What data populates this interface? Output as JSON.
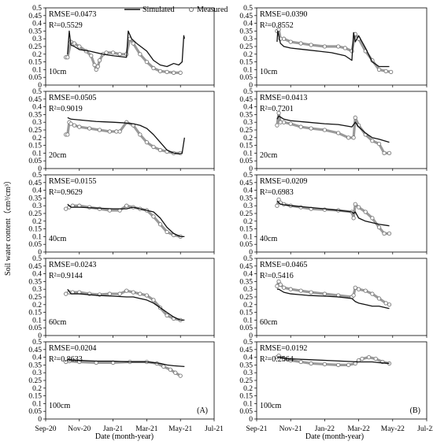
{
  "figure": {
    "ylabel": "Soil water content（cm³/cm³）",
    "xlabel_a": "Date (month-year)",
    "xlabel_b": "Date (month-year)",
    "legend": {
      "simulated": "Simulated",
      "measured": "Measured"
    },
    "colors": {
      "simulated": "#111111",
      "measured": "#9a9a9a",
      "measured_fill": "#7a7a7a",
      "axis": "#000000"
    }
  },
  "chart_data": [
    {
      "type": "line",
      "panel": "A",
      "depth": "10cm",
      "rmse": "RMSE=0.0473",
      "r2": "R²=0.5529",
      "ylim": [
        0,
        0.5
      ],
      "yticks": [
        "0",
        "0.05",
        "0.1",
        "0.15",
        "0.2",
        "0.25",
        "0.3",
        "0.35",
        "0.4",
        "0.45",
        "0.5"
      ],
      "xticks": [
        "Sep-20",
        "Nov-20",
        "Jan-21",
        "Mar-21",
        "May-21",
        "Jul-21"
      ],
      "series": [
        {
          "name": "Simulated",
          "x": [
            0.65,
            0.7,
            0.75,
            0.85,
            1.0,
            1.3,
            1.7,
            2.0,
            2.4,
            2.45,
            2.55,
            2.7,
            3.0,
            3.2,
            3.4,
            3.6,
            3.8,
            3.95,
            4.05,
            4.1,
            4.12
          ],
          "y": [
            0.2,
            0.35,
            0.26,
            0.25,
            0.23,
            0.22,
            0.2,
            0.19,
            0.18,
            0.35,
            0.3,
            0.27,
            0.22,
            0.16,
            0.13,
            0.12,
            0.14,
            0.13,
            0.15,
            0.32,
            0.3
          ]
        },
        {
          "name": "Measured",
          "x": [
            0.6,
            0.65,
            0.75,
            0.85,
            1.0,
            1.2,
            1.35,
            1.45,
            1.5,
            1.55,
            1.6,
            1.7,
            1.8,
            2.0,
            2.2,
            2.4,
            2.5,
            2.6,
            2.8,
            3.0,
            3.2,
            3.4,
            3.6,
            3.8,
            4.0
          ],
          "y": [
            0.18,
            0.18,
            0.28,
            0.27,
            0.25,
            0.22,
            0.19,
            0.13,
            0.1,
            0.12,
            0.16,
            0.2,
            0.21,
            0.21,
            0.2,
            0.2,
            0.3,
            0.27,
            0.2,
            0.15,
            0.11,
            0.09,
            0.085,
            0.08,
            0.08
          ]
        }
      ]
    },
    {
      "type": "line",
      "panel": "A",
      "depth": "20cm",
      "rmse": "RMSE=0.0505",
      "r2": "R²=0.9019",
      "ylim": [
        0,
        0.5
      ],
      "yticks": [
        "0",
        "0.05",
        "0.1",
        "0.15",
        "0.2",
        "0.25",
        "0.3",
        "0.35",
        "0.4",
        "0.45",
        "0.5"
      ],
      "xticks": [
        "Sep-20",
        "Nov-20",
        "Jan-21",
        "Mar-21",
        "May-21",
        "Jul-21"
      ],
      "series": [
        {
          "name": "Simulated",
          "x": [
            0.65,
            0.75,
            1.0,
            1.5,
            2.0,
            2.4,
            2.6,
            2.8,
            3.0,
            3.2,
            3.4,
            3.6,
            3.8,
            3.95,
            4.05,
            4.12
          ],
          "y": [
            0.33,
            0.32,
            0.315,
            0.305,
            0.3,
            0.295,
            0.29,
            0.28,
            0.26,
            0.22,
            0.17,
            0.12,
            0.1,
            0.095,
            0.1,
            0.2
          ]
        },
        {
          "name": "Measured",
          "x": [
            0.6,
            0.65,
            0.7,
            0.75,
            0.85,
            1.0,
            1.3,
            1.6,
            1.9,
            2.1,
            2.2,
            2.4,
            2.6,
            2.8,
            3.0,
            3.2,
            3.4,
            3.6,
            3.8,
            4.0
          ],
          "y": [
            0.22,
            0.22,
            0.3,
            0.29,
            0.28,
            0.27,
            0.26,
            0.25,
            0.24,
            0.24,
            0.24,
            0.3,
            0.28,
            0.22,
            0.17,
            0.14,
            0.12,
            0.11,
            0.1,
            0.1
          ]
        }
      ]
    },
    {
      "type": "line",
      "panel": "A",
      "depth": "40cm",
      "rmse": "RMSE=0.0155",
      "r2": "R²=0.9629",
      "ylim": [
        0,
        0.5
      ],
      "yticks": [
        "0",
        "0.05",
        "0.1",
        "0.15",
        "0.2",
        "0.25",
        "0.3",
        "0.35",
        "0.4",
        "0.45",
        "0.5"
      ],
      "xticks": [
        "Sep-20",
        "Nov-20",
        "Jan-21",
        "Mar-21",
        "May-21",
        "Jul-21"
      ],
      "series": [
        {
          "name": "Simulated",
          "x": [
            0.65,
            0.75,
            1.0,
            1.5,
            2.0,
            2.4,
            2.6,
            2.8,
            3.0,
            3.2,
            3.4,
            3.6,
            3.8,
            4.0,
            4.12
          ],
          "y": [
            0.31,
            0.29,
            0.29,
            0.285,
            0.28,
            0.28,
            0.29,
            0.28,
            0.27,
            0.26,
            0.22,
            0.16,
            0.12,
            0.1,
            0.1
          ]
        },
        {
          "name": "Measured",
          "x": [
            0.6,
            0.7,
            0.8,
            1.0,
            1.3,
            1.6,
            1.9,
            2.2,
            2.4,
            2.6,
            2.8,
            3.0,
            3.2,
            3.4,
            3.6,
            3.8,
            4.0
          ],
          "y": [
            0.28,
            0.29,
            0.3,
            0.3,
            0.29,
            0.28,
            0.27,
            0.27,
            0.3,
            0.29,
            0.28,
            0.27,
            0.23,
            0.18,
            0.13,
            0.11,
            0.1
          ]
        }
      ]
    },
    {
      "type": "line",
      "panel": "A",
      "depth": "60cm",
      "rmse": "RMSE=0.0243",
      "r2": "R²=0.9144",
      "ylim": [
        0,
        0.5
      ],
      "yticks": [
        "0",
        "0.05",
        "0.1",
        "0.15",
        "0.2",
        "0.25",
        "0.3",
        "0.35",
        "0.4",
        "0.45",
        "0.5"
      ],
      "xticks": [
        "Sep-20",
        "Nov-20",
        "Jan-21",
        "Mar-21",
        "May-21",
        "Jul-21"
      ],
      "series": [
        {
          "name": "Simulated",
          "x": [
            0.65,
            0.75,
            1.0,
            1.5,
            2.0,
            2.4,
            2.6,
            2.8,
            3.0,
            3.2,
            3.4,
            3.6,
            3.8,
            4.0,
            4.12
          ],
          "y": [
            0.3,
            0.27,
            0.27,
            0.26,
            0.255,
            0.25,
            0.25,
            0.24,
            0.23,
            0.21,
            0.18,
            0.15,
            0.12,
            0.1,
            0.1
          ]
        },
        {
          "name": "Measured",
          "x": [
            0.6,
            0.7,
            0.8,
            1.0,
            1.3,
            1.6,
            1.9,
            2.2,
            2.4,
            2.6,
            2.8,
            3.0,
            3.2,
            3.4,
            3.6,
            3.8,
            4.0
          ],
          "y": [
            0.27,
            0.28,
            0.28,
            0.28,
            0.27,
            0.265,
            0.27,
            0.27,
            0.29,
            0.28,
            0.27,
            0.26,
            0.23,
            0.18,
            0.13,
            0.11,
            0.1
          ]
        }
      ]
    },
    {
      "type": "line",
      "panel": "A",
      "depth": "100cm",
      "rmse": "RMSE=0.0204",
      "r2": "R²=0.8633",
      "ylim": [
        0,
        0.5
      ],
      "yticks": [
        "0",
        "0.05",
        "0.1",
        "0.15",
        "0.2",
        "0.25",
        "0.3",
        "0.35",
        "0.4",
        "0.45",
        "0.5"
      ],
      "xticks": [
        "Sep-20",
        "Nov-20",
        "Jan-21",
        "Mar-21",
        "May-21",
        "Jul-21"
      ],
      "series": [
        {
          "name": "Simulated",
          "x": [
            0.65,
            1.0,
            1.5,
            2.0,
            2.5,
            3.0,
            3.4,
            3.6,
            3.8,
            4.12
          ],
          "y": [
            0.385,
            0.38,
            0.375,
            0.375,
            0.37,
            0.37,
            0.36,
            0.35,
            0.345,
            0.34
          ]
        },
        {
          "name": "Measured",
          "x": [
            0.6,
            0.7,
            1.0,
            1.5,
            2.0,
            2.5,
            3.0,
            3.3,
            3.5,
            3.7,
            3.85,
            4.0
          ],
          "y": [
            0.37,
            0.375,
            0.37,
            0.365,
            0.365,
            0.37,
            0.37,
            0.36,
            0.34,
            0.32,
            0.3,
            0.28
          ]
        }
      ]
    },
    {
      "type": "line",
      "panel": "B",
      "depth": "10cm",
      "rmse": "RMSE=0.0390",
      "r2": "R²=0.8552",
      "ylim": [
        0,
        0.5
      ],
      "yticks": [
        "0",
        "0.05",
        "0.1",
        "0.15",
        "0.2",
        "0.25",
        "0.3",
        "0.35",
        "0.4",
        "0.45",
        "0.5"
      ],
      "xticks": [
        "Sep-21",
        "Nov-21",
        "Jan-22",
        "Mar-22",
        "May-22",
        "Jul-22"
      ],
      "series": [
        {
          "name": "Simulated",
          "x": [
            0.6,
            0.62,
            0.7,
            0.8,
            1.0,
            1.4,
            1.8,
            2.2,
            2.6,
            2.8,
            2.85,
            2.9,
            3.0,
            3.2,
            3.4,
            3.6,
            3.9
          ],
          "y": [
            0.28,
            0.35,
            0.27,
            0.25,
            0.24,
            0.23,
            0.22,
            0.21,
            0.19,
            0.16,
            0.34,
            0.28,
            0.32,
            0.24,
            0.15,
            0.12,
            0.12
          ]
        },
        {
          "name": "Measured",
          "x": [
            0.6,
            0.65,
            0.7,
            0.8,
            1.0,
            1.3,
            1.6,
            2.0,
            2.4,
            2.6,
            2.8,
            2.9,
            3.0,
            3.2,
            3.4,
            3.6,
            3.8,
            3.95
          ],
          "y": [
            0.35,
            0.36,
            0.3,
            0.3,
            0.28,
            0.27,
            0.26,
            0.25,
            0.25,
            0.24,
            0.22,
            0.33,
            0.3,
            0.22,
            0.16,
            0.1,
            0.09,
            0.085
          ]
        }
      ]
    },
    {
      "type": "line",
      "panel": "B",
      "depth": "20cm",
      "rmse": "RMSE=0.0413",
      "r2": "R²=0.7201",
      "ylim": [
        0,
        0.5
      ],
      "yticks": [
        "0",
        "0.05",
        "0.1",
        "0.15",
        "0.2",
        "0.25",
        "0.3",
        "0.35",
        "0.4",
        "0.45",
        "0.5"
      ],
      "xticks": [
        "Sep-21",
        "Nov-21",
        "Jan-22",
        "Mar-22",
        "May-22",
        "Jul-22"
      ],
      "series": [
        {
          "name": "Simulated",
          "x": [
            0.6,
            0.65,
            0.8,
            1.0,
            1.5,
            2.0,
            2.4,
            2.8,
            2.9,
            3.0,
            3.2,
            3.4,
            3.6,
            3.9
          ],
          "y": [
            0.32,
            0.34,
            0.32,
            0.31,
            0.3,
            0.29,
            0.285,
            0.27,
            0.3,
            0.27,
            0.23,
            0.2,
            0.19,
            0.17
          ]
        },
        {
          "name": "Measured",
          "x": [
            0.6,
            0.65,
            0.7,
            0.8,
            1.0,
            1.3,
            1.6,
            2.0,
            2.4,
            2.7,
            2.85,
            2.9,
            3.0,
            3.2,
            3.4,
            3.6,
            3.75,
            3.9
          ],
          "y": [
            0.28,
            0.36,
            0.3,
            0.3,
            0.29,
            0.27,
            0.26,
            0.25,
            0.23,
            0.2,
            0.2,
            0.33,
            0.28,
            0.22,
            0.18,
            0.16,
            0.1,
            0.1
          ]
        }
      ]
    },
    {
      "type": "line",
      "panel": "B",
      "depth": "40cm",
      "rmse": "RMSE=0.0209",
      "r2": "R²=0.6983",
      "ylim": [
        0,
        0.5
      ],
      "yticks": [
        "0",
        "0.05",
        "0.1",
        "0.15",
        "0.2",
        "0.25",
        "0.3",
        "0.35",
        "0.4",
        "0.45",
        "0.5"
      ],
      "xticks": [
        "Sep-21",
        "Nov-21",
        "Jan-22",
        "Mar-22",
        "May-22",
        "Jul-22"
      ],
      "series": [
        {
          "name": "Simulated",
          "x": [
            0.6,
            0.7,
            1.0,
            1.5,
            2.0,
            2.4,
            2.8,
            2.85,
            2.9,
            3.0,
            3.2,
            3.4,
            3.6,
            3.9
          ],
          "y": [
            0.33,
            0.31,
            0.3,
            0.29,
            0.28,
            0.27,
            0.26,
            0.25,
            0.26,
            0.22,
            0.2,
            0.19,
            0.18,
            0.17
          ]
        },
        {
          "name": "Measured",
          "x": [
            0.6,
            0.65,
            0.7,
            0.8,
            1.0,
            1.3,
            1.6,
            2.0,
            2.4,
            2.8,
            2.85,
            2.9,
            3.0,
            3.2,
            3.4,
            3.6,
            3.75,
            3.9
          ],
          "y": [
            0.3,
            0.34,
            0.32,
            0.31,
            0.3,
            0.29,
            0.28,
            0.275,
            0.27,
            0.26,
            0.22,
            0.31,
            0.29,
            0.26,
            0.22,
            0.16,
            0.12,
            0.12
          ]
        }
      ]
    },
    {
      "type": "line",
      "panel": "B",
      "depth": "60cm",
      "rmse": "RMSE=0.0465",
      "r2": "R²=0.5416",
      "ylim": [
        0,
        0.5
      ],
      "yticks": [
        "0",
        "0.05",
        "0.1",
        "0.15",
        "0.2",
        "0.25",
        "0.3",
        "0.35",
        "0.4",
        "0.45",
        "0.5"
      ],
      "xticks": [
        "Sep-21",
        "Nov-21",
        "Jan-22",
        "Mar-22",
        "May-22",
        "Jul-22"
      ],
      "series": [
        {
          "name": "Simulated",
          "x": [
            0.6,
            0.65,
            0.8,
            1.0,
            1.5,
            2.0,
            2.4,
            2.8,
            2.9,
            3.0,
            3.2,
            3.4,
            3.6,
            3.9
          ],
          "y": [
            0.3,
            0.3,
            0.28,
            0.27,
            0.26,
            0.255,
            0.25,
            0.24,
            0.22,
            0.21,
            0.2,
            0.19,
            0.19,
            0.175
          ]
        },
        {
          "name": "Measured",
          "x": [
            0.6,
            0.65,
            0.7,
            0.8,
            1.0,
            1.3,
            1.6,
            2.0,
            2.4,
            2.8,
            2.85,
            2.9,
            3.0,
            3.2,
            3.4,
            3.6,
            3.8,
            3.9
          ],
          "y": [
            0.32,
            0.35,
            0.33,
            0.31,
            0.3,
            0.29,
            0.28,
            0.27,
            0.26,
            0.25,
            0.26,
            0.31,
            0.3,
            0.29,
            0.27,
            0.24,
            0.21,
            0.2
          ]
        }
      ]
    },
    {
      "type": "line",
      "panel": "B",
      "depth": "100cm",
      "rmse": "RMSE=0.0192",
      "r2": "R²=0.2564",
      "ylim": [
        0,
        0.5
      ],
      "yticks": [
        "0",
        "0.05",
        "0.1",
        "0.15",
        "0.2",
        "0.25",
        "0.3",
        "0.35",
        "0.4",
        "0.45",
        "0.5"
      ],
      "xticks": [
        "Sep-21",
        "Nov-21",
        "Jan-22",
        "Mar-22",
        "May-22",
        "Jul-22"
      ],
      "series": [
        {
          "name": "Simulated",
          "x": [
            0.6,
            1.0,
            1.5,
            2.0,
            2.5,
            3.0,
            3.4,
            3.6,
            3.9
          ],
          "y": [
            0.4,
            0.39,
            0.385,
            0.38,
            0.375,
            0.37,
            0.37,
            0.365,
            0.36
          ]
        },
        {
          "name": "Measured",
          "x": [
            0.6,
            0.65,
            0.8,
            1.0,
            1.3,
            1.6,
            2.0,
            2.4,
            2.7,
            2.9,
            3.0,
            3.1,
            3.3,
            3.5,
            3.7,
            3.9
          ],
          "y": [
            0.4,
            0.41,
            0.39,
            0.38,
            0.37,
            0.36,
            0.355,
            0.35,
            0.35,
            0.36,
            0.38,
            0.39,
            0.4,
            0.39,
            0.37,
            0.36
          ]
        }
      ]
    }
  ]
}
